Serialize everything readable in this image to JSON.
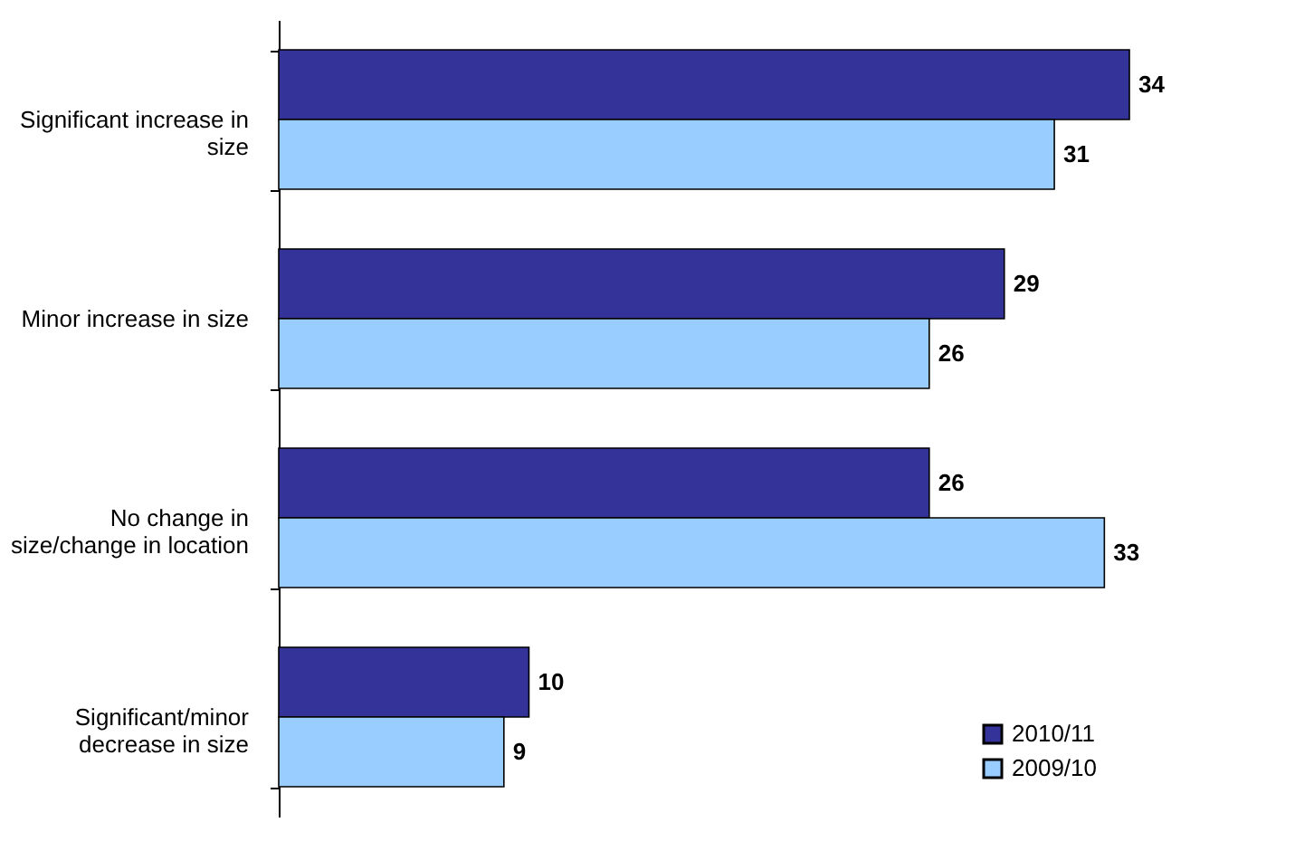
{
  "chart_data": {
    "type": "bar",
    "orientation": "horizontal",
    "categories": [
      "Significant increase in\nsize",
      "Minor increase in size",
      "No change in\nsize/change in location",
      "Significant/minor\ndecrease in size"
    ],
    "series": [
      {
        "name": "2010/11",
        "color": "#333399",
        "values": [
          34,
          29,
          26,
          10
        ]
      },
      {
        "name": "2009/10",
        "color": "#99ccff",
        "values": [
          31,
          26,
          33,
          9
        ]
      }
    ],
    "data_labels": true,
    "legend": "bottom right",
    "grid": false
  }
}
